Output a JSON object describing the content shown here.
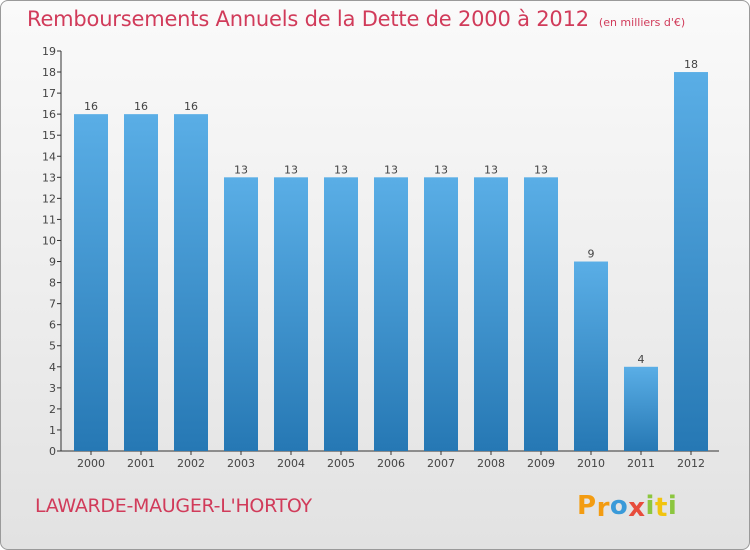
{
  "chart_data": {
    "type": "bar",
    "title": "Remboursements Annuels de la Dette de 2000 à 2012",
    "subtitle": "(en milliers d'€)",
    "categories": [
      "2000",
      "2001",
      "2002",
      "2003",
      "2004",
      "2005",
      "2006",
      "2007",
      "2008",
      "2009",
      "2010",
      "2011",
      "2012"
    ],
    "values": [
      16,
      16,
      16,
      13,
      13,
      13,
      13,
      13,
      13,
      13,
      9,
      4,
      18
    ],
    "data_labels": [
      "16",
      "16",
      "16",
      "13",
      "13",
      "13",
      "13",
      "13",
      "13",
      "13",
      "9",
      "4",
      "18"
    ],
    "ylim": [
      0,
      19
    ],
    "yticks": [
      "0",
      "1",
      "2",
      "3",
      "4",
      "5",
      "6",
      "7",
      "8",
      "9",
      "10",
      "11",
      "12",
      "13",
      "14",
      "15",
      "16",
      "17",
      "18",
      "19"
    ],
    "grid": false,
    "xlabel": "",
    "ylabel": ""
  },
  "footer": {
    "commune": "LAWARDE-MAUGER-L'HORTOY",
    "brand_letters": [
      "P",
      "r",
      "o",
      "x",
      "i",
      "t",
      "i"
    ]
  },
  "colors": {
    "accent": "#d13b5a",
    "bar_top": "#5aaee6",
    "bar_bottom": "#2678b4",
    "brand": [
      "#f39c12",
      "#f39c12",
      "#3a9ad9",
      "#e74c3c",
      "#8cc63f",
      "#f1c40f",
      "#8cc63f"
    ]
  }
}
